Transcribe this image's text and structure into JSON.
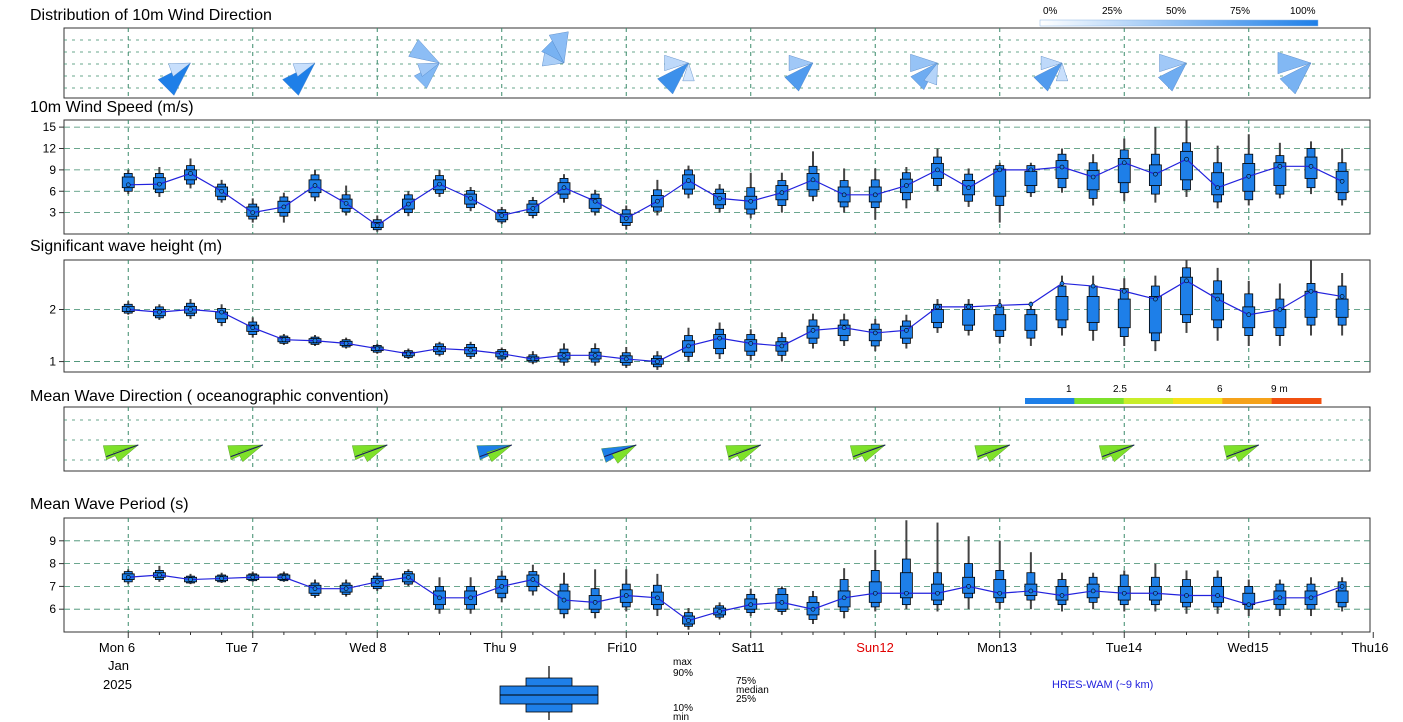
{
  "titles": {
    "wind_dir": "Distribution of 10m Wind Direction",
    "wind_speed": "10m Wind Speed (m/s)",
    "wave_height": "Significant wave height (m)",
    "wave_dir": "Mean Wave Direction ( oceanographic convention)",
    "wave_period": "Mean Wave Period (s)"
  },
  "wind_dir_legend": [
    "0%",
    "25%",
    "50%",
    "75%",
    "100%"
  ],
  "wave_dir_legend": [
    "1",
    "2.5",
    "4",
    "6",
    "9 m"
  ],
  "wave_dir_legend_colors": [
    "#1e7fe8",
    "#7ee12a",
    "#c8ee2a",
    "#f5e21a",
    "#f5a21a",
    "#f05010"
  ],
  "days": [
    {
      "label": "Mon 6",
      "color": "#000000"
    },
    {
      "label": "Tue 7",
      "color": "#000000"
    },
    {
      "label": "Wed 8",
      "color": "#000000"
    },
    {
      "label": "Thu 9",
      "color": "#000000"
    },
    {
      "label": "Fri10",
      "color": "#000000"
    },
    {
      "label": "Sat11",
      "color": "#000000"
    },
    {
      "label": "Sun12",
      "color": "#e00000"
    },
    {
      "label": "Mon13",
      "color": "#000000"
    },
    {
      "label": "Tue14",
      "color": "#000000"
    },
    {
      "label": "Wed15",
      "color": "#000000"
    },
    {
      "label": "Thu16",
      "color": "#000000"
    }
  ],
  "month": "Jan",
  "year": "2025",
  "box_legend": {
    "max": "max",
    "p90": "90%",
    "p75": "75%",
    "median": "median",
    "p25": "25%",
    "p10": "10%",
    "min": "min"
  },
  "model": "HRES-WAM (~9 km)",
  "chart_data": [
    {
      "type": "rose",
      "title": "Distribution of 10m Wind Direction",
      "times": [
        0.5,
        1.5,
        2.5,
        3.5,
        4.5,
        5.5,
        6.5,
        7.5,
        8.5,
        9.5
      ],
      "petals": [
        [
          [
            225,
            0.95,
            1.0
          ],
          [
            250,
            0.5,
            0.15
          ]
        ],
        [
          [
            225,
            0.95,
            1.0
          ],
          [
            250,
            0.5,
            0.15
          ]
        ],
        [
          [
            225,
            0.7,
            0.5
          ],
          [
            300,
            0.8,
            0.45
          ],
          [
            250,
            0.5,
            0.35
          ]
        ],
        [
          [
            315,
            0.6,
            0.55
          ],
          [
            350,
            0.8,
            0.45
          ],
          [
            280,
            0.5,
            0.3
          ]
        ],
        [
          [
            225,
            0.9,
            0.85
          ],
          [
            270,
            0.6,
            0.2
          ],
          [
            180,
            0.4,
            0.1
          ]
        ],
        [
          [
            225,
            0.8,
            0.75
          ],
          [
            270,
            0.6,
            0.35
          ]
        ],
        [
          [
            225,
            0.75,
            0.6
          ],
          [
            270,
            0.7,
            0.4
          ],
          [
            200,
            0.5,
            0.25
          ]
        ],
        [
          [
            225,
            0.8,
            0.75
          ],
          [
            270,
            0.5,
            0.2
          ],
          [
            180,
            0.4,
            0.15
          ]
        ],
        [
          [
            225,
            0.8,
            0.6
          ],
          [
            270,
            0.7,
            0.35
          ]
        ],
        [
          [
            225,
            0.9,
            0.55
          ],
          [
            270,
            0.9,
            0.5
          ]
        ]
      ]
    },
    {
      "type": "box",
      "title": "10m Wind Speed (m/s)",
      "ylim": [
        0,
        16
      ],
      "yticks": [
        3,
        6,
        9,
        12,
        15
      ],
      "x": [
        0,
        0.25,
        0.5,
        0.75,
        1,
        1.25,
        1.5,
        1.75,
        2,
        2.25,
        2.5,
        2.75,
        3,
        3.25,
        3.5,
        3.75,
        4,
        4.25,
        4.5,
        4.75,
        5,
        5.25,
        5.5,
        5.75,
        6,
        6.25,
        6.5,
        6.75,
        7,
        7.25,
        7.5,
        7.75,
        8,
        8.25,
        8.5,
        8.75,
        9,
        9.25,
        9.5,
        9.75
      ],
      "line": [
        6.9,
        7.0,
        8.5,
        6.0,
        3.0,
        3.8,
        6.8,
        4.3,
        1.2,
        4.2,
        7.0,
        5.0,
        2.6,
        3.6,
        6.5,
        4.6,
        2.2,
        4.6,
        7.5,
        5.0,
        4.6,
        5.8,
        7.6,
        5.5,
        5.5,
        6.8,
        9.0,
        6.5,
        9.0,
        9.0,
        9.4,
        8.0,
        10.0,
        8.4,
        10.5,
        6.5,
        8.1,
        9.5,
        9.5,
        7.4
      ],
      "p25": [
        6.5,
        6.3,
        7.6,
        5.3,
        2.5,
        3.0,
        5.8,
        3.6,
        0.9,
        3.5,
        6.2,
        4.2,
        2.0,
        3.0,
        5.6,
        3.6,
        1.6,
        3.8,
        6.3,
        4.1,
        3.5,
        4.8,
        6.2,
        4.5,
        4.5,
        5.8,
        7.8,
        5.5,
        5.3,
        6.8,
        7.8,
        6.2,
        7.2,
        6.8,
        7.6,
        5.5,
        6.0,
        6.8,
        7.8,
        5.8
      ],
      "p75": [
        8.0,
        7.9,
        9.0,
        6.6,
        3.8,
        4.6,
        7.6,
        4.9,
        1.6,
        4.9,
        7.6,
        5.6,
        3.0,
        4.2,
        7.2,
        5.0,
        2.8,
        5.4,
        8.3,
        5.7,
        5.3,
        6.8,
        8.5,
        6.6,
        6.6,
        7.7,
        9.9,
        7.5,
        9.1,
        8.8,
        10.3,
        8.9,
        10.6,
        9.7,
        11.6,
        8.6,
        9.9,
        10.0,
        10.8,
        8.8
      ],
      "p10": [
        6.0,
        5.8,
        7.0,
        4.8,
        2.1,
        2.5,
        5.2,
        3.1,
        0.6,
        3.0,
        5.7,
        3.7,
        1.7,
        2.6,
        5.0,
        3.1,
        1.2,
        3.2,
        5.6,
        3.6,
        2.8,
        4.0,
        5.3,
        3.8,
        3.7,
        4.8,
        6.8,
        4.6,
        4.0,
        5.8,
        6.5,
        5.0,
        5.8,
        5.6,
        6.2,
        4.5,
        4.8,
        5.6,
        6.5,
        4.8
      ],
      "p90": [
        8.5,
        8.5,
        9.6,
        7.0,
        4.2,
        5.2,
        8.3,
        5.5,
        2.0,
        5.5,
        8.2,
        6.1,
        3.4,
        4.7,
        7.8,
        5.6,
        3.4,
        6.2,
        9.0,
        6.3,
        6.5,
        7.5,
        9.5,
        7.5,
        7.6,
        8.6,
        10.8,
        8.4,
        9.6,
        9.6,
        11.2,
        10.0,
        11.8,
        11.2,
        12.8,
        10.0,
        11.2,
        11.0,
        12.0,
        10.0
      ],
      "min": [
        5.6,
        5.2,
        6.4,
        4.4,
        1.6,
        1.6,
        4.6,
        2.6,
        0.3,
        2.5,
        5.2,
        3.2,
        1.4,
        2.2,
        4.4,
        2.6,
        0.6,
        2.6,
        5.0,
        3.0,
        2.2,
        3.0,
        4.6,
        3.0,
        2.0,
        3.6,
        6.0,
        3.8,
        1.6,
        5.2,
        5.8,
        4.0,
        4.6,
        4.4,
        5.2,
        3.6,
        4.0,
        5.0,
        5.6,
        4.0
      ],
      "max": [
        9.0,
        9.4,
        10.6,
        7.6,
        5.0,
        5.8,
        9.0,
        6.8,
        2.6,
        6.0,
        9.0,
        6.6,
        3.8,
        5.2,
        8.4,
        6.2,
        4.0,
        7.6,
        9.6,
        7.0,
        8.6,
        8.6,
        11.6,
        9.2,
        9.2,
        9.4,
        12.0,
        9.2,
        10.0,
        10.0,
        12.0,
        11.2,
        13.4,
        15.0,
        16.0,
        12.4,
        14.0,
        12.8,
        13.0,
        12.0
      ]
    },
    {
      "type": "box",
      "title": "Significant wave height (m)",
      "ylim": [
        0.8,
        2.95
      ],
      "yticks": [
        1,
        2
      ],
      "x": [
        0,
        0.25,
        0.5,
        0.75,
        1,
        1.25,
        1.5,
        1.75,
        2,
        2.25,
        2.5,
        2.75,
        3,
        3.25,
        3.5,
        3.75,
        4,
        4.25,
        4.5,
        4.75,
        5,
        5.25,
        5.5,
        5.75,
        6,
        6.25,
        6.5,
        6.75,
        7,
        7.25,
        7.5,
        7.75,
        8,
        8.25,
        8.5,
        8.75,
        9,
        9.25,
        9.5,
        9.75
      ],
      "line": [
        2.0,
        1.95,
        2.0,
        1.95,
        1.65,
        1.42,
        1.4,
        1.35,
        1.25,
        1.15,
        1.25,
        1.22,
        1.15,
        1.05,
        1.12,
        1.12,
        1.05,
        1.0,
        1.3,
        1.45,
        1.35,
        1.3,
        1.6,
        1.65,
        1.55,
        1.6,
        2.05,
        2.05,
        2.08,
        2.1,
        2.5,
        2.45,
        2.35,
        2.2,
        2.55,
        2.2,
        1.9,
        2.0,
        2.35,
        2.25
      ],
      "p25": [
        1.96,
        1.88,
        1.93,
        1.82,
        1.58,
        1.38,
        1.36,
        1.31,
        1.21,
        1.11,
        1.19,
        1.15,
        1.09,
        1.02,
        1.05,
        1.05,
        0.98,
        0.95,
        1.18,
        1.25,
        1.2,
        1.2,
        1.45,
        1.5,
        1.4,
        1.45,
        1.75,
        1.7,
        1.6,
        1.6,
        1.8,
        1.75,
        1.65,
        1.55,
        1.9,
        1.8,
        1.65,
        1.65,
        1.85,
        1.85
      ],
      "p75": [
        2.06,
        2.0,
        2.06,
        1.95,
        1.7,
        1.46,
        1.44,
        1.39,
        1.28,
        1.18,
        1.29,
        1.27,
        1.19,
        1.09,
        1.17,
        1.18,
        1.11,
        1.06,
        1.4,
        1.52,
        1.42,
        1.38,
        1.68,
        1.7,
        1.62,
        1.68,
        2.0,
        2.0,
        1.9,
        1.9,
        2.25,
        2.25,
        2.2,
        2.25,
        2.62,
        2.3,
        2.05,
        2.0,
        2.35,
        2.2
      ],
      "p10": [
        1.93,
        1.84,
        1.88,
        1.75,
        1.52,
        1.35,
        1.33,
        1.28,
        1.18,
        1.08,
        1.14,
        1.1,
        1.05,
        0.99,
        0.99,
        0.99,
        0.93,
        0.9,
        1.1,
        1.15,
        1.12,
        1.12,
        1.35,
        1.4,
        1.3,
        1.35,
        1.65,
        1.6,
        1.48,
        1.45,
        1.65,
        1.6,
        1.48,
        1.4,
        1.75,
        1.65,
        1.5,
        1.5,
        1.7,
        1.7
      ],
      "p90": [
        2.1,
        2.05,
        2.12,
        2.02,
        1.76,
        1.49,
        1.47,
        1.42,
        1.31,
        1.21,
        1.34,
        1.33,
        1.23,
        1.13,
        1.24,
        1.25,
        1.17,
        1.11,
        1.5,
        1.62,
        1.52,
        1.46,
        1.8,
        1.8,
        1.72,
        1.78,
        2.1,
        2.1,
        2.05,
        2.0,
        2.45,
        2.45,
        2.4,
        2.45,
        2.8,
        2.55,
        2.3,
        2.2,
        2.5,
        2.45
      ],
      "min": [
        1.9,
        1.8,
        1.82,
        1.68,
        1.46,
        1.32,
        1.3,
        1.25,
        1.15,
        1.05,
        1.1,
        1.05,
        1.0,
        0.95,
        0.92,
        0.92,
        0.88,
        0.84,
        1.0,
        1.05,
        1.02,
        1.0,
        1.25,
        1.3,
        1.2,
        1.25,
        1.55,
        1.5,
        1.35,
        1.3,
        1.5,
        1.4,
        1.3,
        1.2,
        1.55,
        1.4,
        1.3,
        1.3,
        1.5,
        1.5
      ],
      "max": [
        2.16,
        2.1,
        2.2,
        2.1,
        1.85,
        1.53,
        1.51,
        1.46,
        1.34,
        1.25,
        1.38,
        1.38,
        1.27,
        1.2,
        1.35,
        1.35,
        1.28,
        1.2,
        1.65,
        1.75,
        1.62,
        1.56,
        1.92,
        1.92,
        1.82,
        1.9,
        2.2,
        2.2,
        2.2,
        2.15,
        2.65,
        2.65,
        2.6,
        2.65,
        2.95,
        2.8,
        2.55,
        2.5,
        2.95,
        2.7
      ]
    },
    {
      "type": "rose",
      "title": "Mean Wave Direction ( oceanographic convention)",
      "times": [
        0,
        1,
        2,
        3,
        4,
        5,
        6,
        7,
        8,
        9
      ],
      "petals": [
        [
          [
            255,
            0.9,
            "#7ee12a"
          ],
          [
            240,
            0.6,
            "#7ee12a"
          ]
        ],
        [
          [
            255,
            0.9,
            "#7ee12a"
          ],
          [
            240,
            0.6,
            "#7ee12a"
          ]
        ],
        [
          [
            255,
            0.9,
            "#7ee12a"
          ],
          [
            240,
            0.6,
            "#7ee12a"
          ]
        ],
        [
          [
            255,
            0.9,
            "#1e7fe8"
          ],
          [
            240,
            0.6,
            "#7ee12a"
          ]
        ],
        [
          [
            250,
            0.9,
            "#1e7fe8"
          ],
          [
            235,
            0.6,
            "#7ee12a"
          ]
        ],
        [
          [
            255,
            0.9,
            "#7ee12a"
          ],
          [
            240,
            0.6,
            "#7ee12a"
          ]
        ],
        [
          [
            255,
            0.9,
            "#7ee12a"
          ],
          [
            240,
            0.6,
            "#7ee12a"
          ]
        ],
        [
          [
            255,
            0.9,
            "#7ee12a"
          ],
          [
            240,
            0.6,
            "#7ee12a"
          ]
        ],
        [
          [
            255,
            0.9,
            "#7ee12a"
          ],
          [
            240,
            0.6,
            "#7ee12a"
          ]
        ],
        [
          [
            255,
            0.9,
            "#7ee12a"
          ],
          [
            240,
            0.6,
            "#7ee12a"
          ]
        ]
      ]
    },
    {
      "type": "box",
      "title": "Mean Wave Period (s)",
      "ylim": [
        5.0,
        10.0
      ],
      "yticks": [
        6,
        7,
        8,
        9
      ],
      "x": [
        0,
        0.25,
        0.5,
        0.75,
        1,
        1.25,
        1.5,
        1.75,
        2,
        2.25,
        2.5,
        2.75,
        3,
        3.25,
        3.5,
        3.75,
        4,
        4.25,
        4.5,
        4.75,
        5,
        5.25,
        5.5,
        5.75,
        6,
        6.25,
        6.5,
        6.75,
        7,
        7.25,
        7.5,
        7.75,
        8,
        8.25,
        8.5,
        8.75,
        9,
        9.25,
        9.5,
        9.75
      ],
      "line": [
        7.4,
        7.5,
        7.3,
        7.35,
        7.4,
        7.4,
        6.9,
        6.9,
        7.2,
        7.4,
        6.5,
        6.5,
        7.0,
        7.3,
        6.4,
        6.3,
        6.6,
        6.5,
        5.5,
        5.9,
        6.2,
        6.3,
        6.0,
        6.5,
        6.7,
        6.7,
        6.7,
        7.0,
        6.7,
        6.8,
        6.6,
        6.8,
        6.7,
        6.7,
        6.6,
        6.6,
        6.2,
        6.5,
        6.5,
        7.0
      ],
      "p25": [
        7.3,
        7.4,
        7.2,
        7.25,
        7.3,
        7.3,
        6.7,
        6.75,
        7.0,
        7.2,
        6.2,
        6.2,
        6.7,
        7.0,
        6.0,
        6.0,
        6.3,
        6.2,
        5.35,
        5.75,
        6.0,
        6.0,
        5.75,
        6.1,
        6.3,
        6.5,
        6.4,
        6.7,
        6.5,
        6.6,
        6.4,
        6.5,
        6.4,
        6.4,
        6.3,
        6.3,
        6.2,
        6.2,
        6.2,
        6.3
      ],
      "p75": [
        7.55,
        7.6,
        7.4,
        7.45,
        7.5,
        7.5,
        7.05,
        7.05,
        7.35,
        7.55,
        6.8,
        6.8,
        7.3,
        7.5,
        6.8,
        6.6,
        6.85,
        6.75,
        5.7,
        6.05,
        6.45,
        6.65,
        6.3,
        6.8,
        7.2,
        7.6,
        7.1,
        7.4,
        7.3,
        7.1,
        7.0,
        7.1,
        7.0,
        7.0,
        7.0,
        7.0,
        6.7,
        6.8,
        6.8,
        6.8
      ],
      "p10": [
        7.2,
        7.3,
        7.15,
        7.2,
        7.25,
        7.25,
        6.6,
        6.65,
        6.9,
        7.1,
        6.0,
        6.0,
        6.5,
        6.8,
        5.8,
        5.85,
        6.1,
        6.0,
        5.25,
        5.65,
        5.85,
        5.9,
        5.55,
        5.9,
        6.1,
        6.2,
        6.2,
        6.5,
        6.3,
        6.4,
        6.2,
        6.3,
        6.2,
        6.2,
        6.1,
        6.1,
        6.0,
        6.0,
        6.0,
        6.1
      ],
      "p90": [
        7.65,
        7.7,
        7.45,
        7.5,
        7.55,
        7.55,
        7.15,
        7.15,
        7.45,
        7.65,
        7.0,
        7.0,
        7.45,
        7.65,
        7.1,
        6.9,
        7.1,
        7.05,
        5.85,
        6.15,
        6.65,
        6.9,
        6.55,
        7.3,
        7.7,
        8.2,
        7.6,
        8.0,
        7.7,
        7.6,
        7.3,
        7.4,
        7.5,
        7.4,
        7.3,
        7.4,
        7.0,
        7.1,
        7.1,
        7.2
      ],
      "min": [
        7.1,
        7.2,
        7.1,
        7.15,
        7.2,
        7.2,
        6.5,
        6.55,
        6.8,
        7.0,
        5.8,
        5.8,
        6.3,
        6.6,
        5.6,
        5.6,
        5.9,
        5.7,
        5.1,
        5.55,
        5.7,
        5.75,
        5.35,
        5.6,
        5.9,
        6.0,
        5.9,
        6.0,
        6.0,
        6.0,
        5.9,
        6.0,
        5.9,
        5.9,
        5.8,
        5.8,
        5.7,
        5.7,
        5.7,
        5.9
      ],
      "max": [
        7.75,
        7.9,
        7.55,
        7.6,
        7.65,
        7.65,
        7.3,
        7.3,
        7.6,
        7.75,
        7.4,
        7.4,
        7.7,
        7.95,
        7.6,
        7.75,
        7.75,
        7.55,
        6.05,
        6.3,
        6.9,
        7.0,
        6.8,
        7.8,
        8.6,
        9.9,
        9.8,
        9.2,
        9.0,
        8.5,
        7.6,
        7.6,
        7.7,
        8.0,
        7.7,
        7.7,
        7.3,
        7.3,
        7.4,
        7.4
      ]
    }
  ]
}
